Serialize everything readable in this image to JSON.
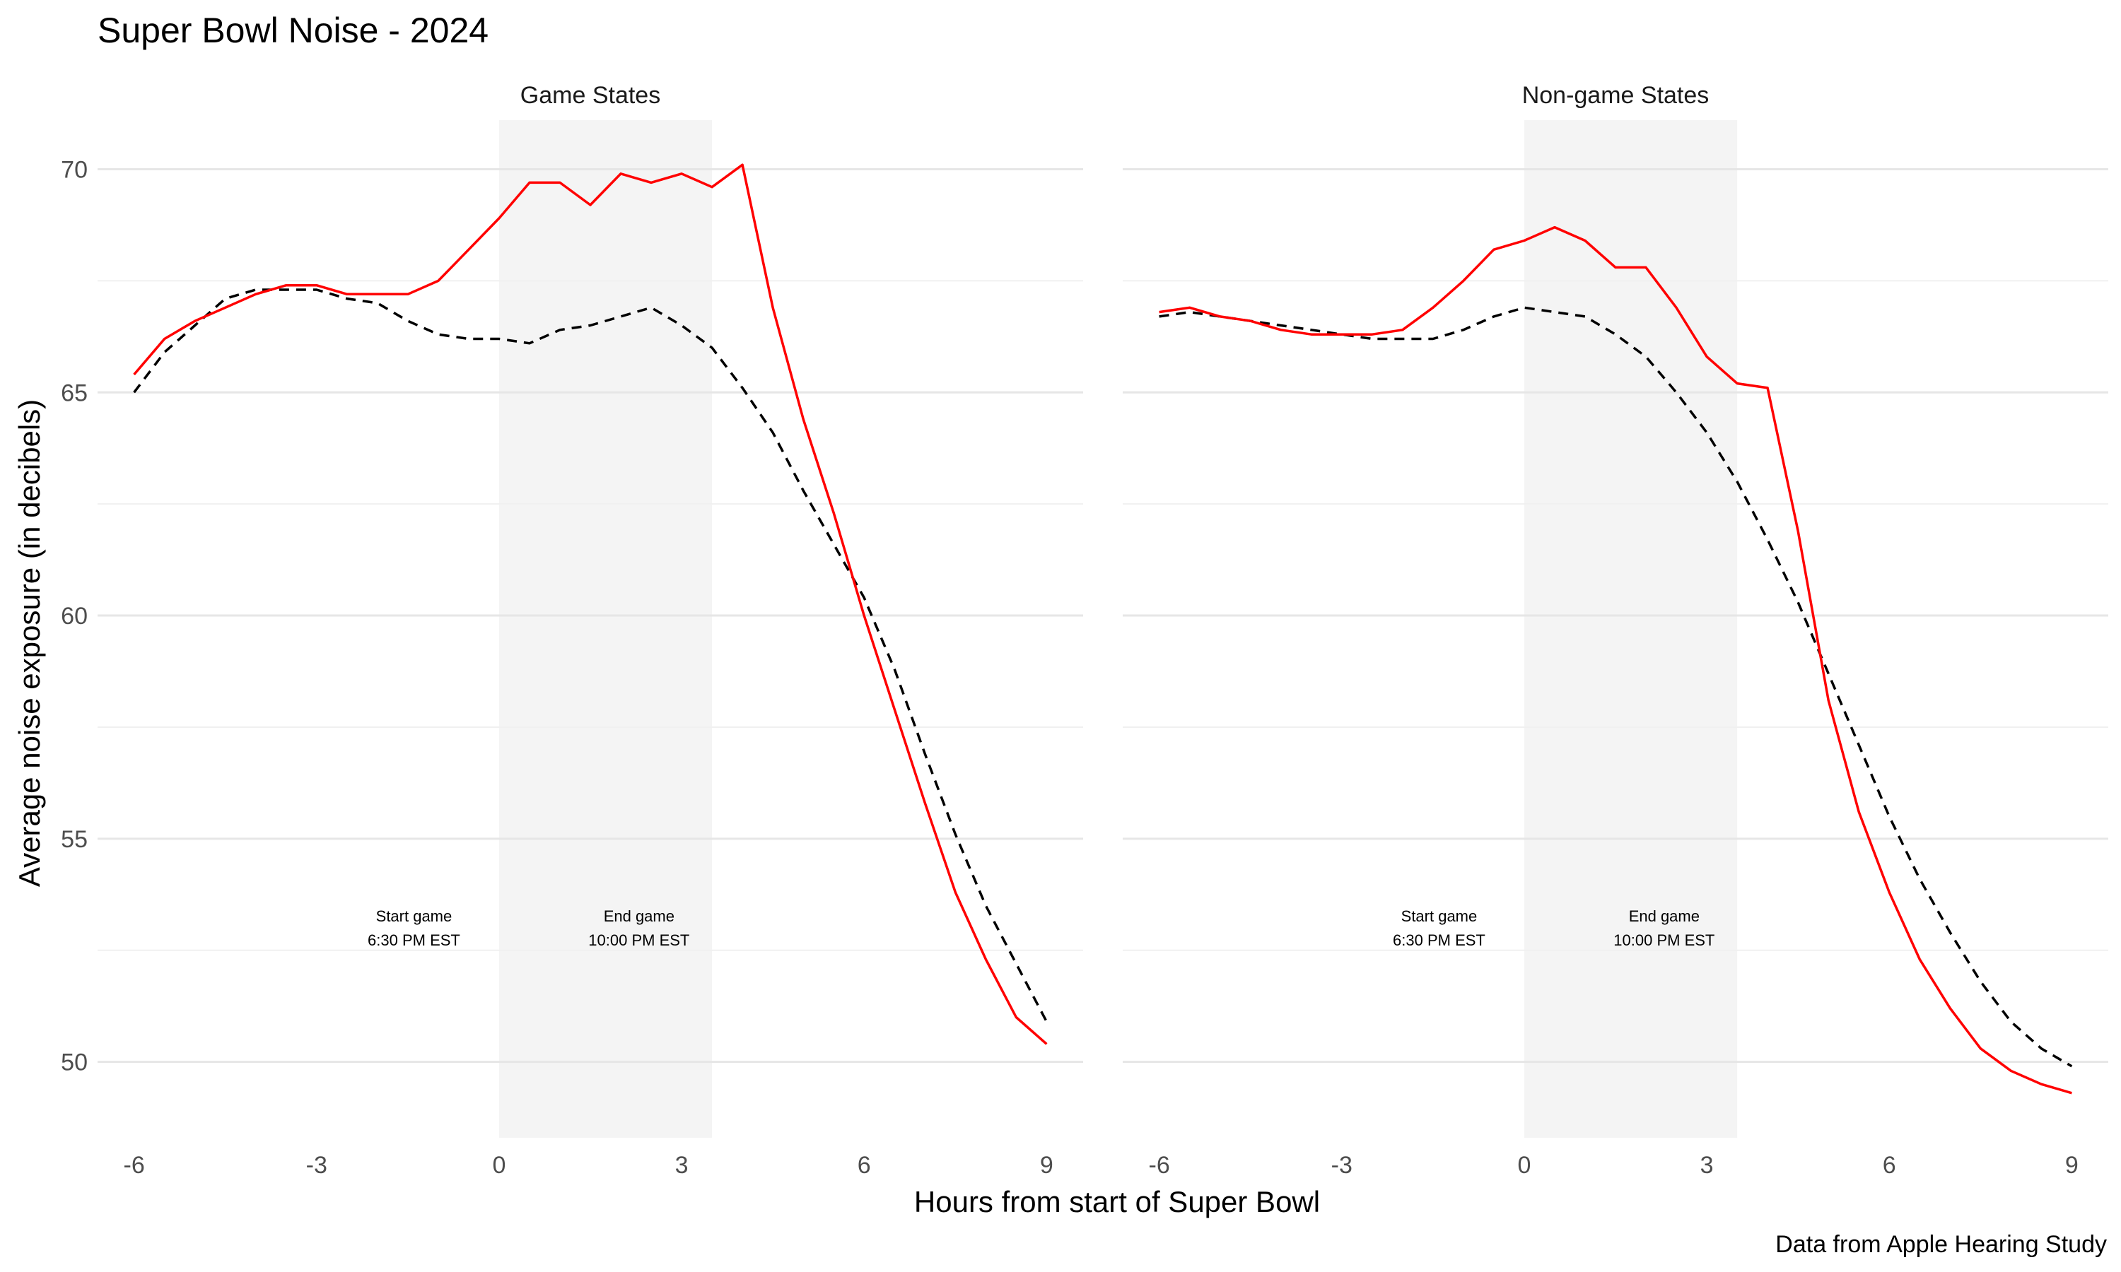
{
  "chart_data": {
    "type": "line",
    "title": "Super Bowl Noise - 2024",
    "xlabel": "Hours from start of Super Bowl",
    "ylabel": "Average noise exposure (in decibels)",
    "caption": "Data from Apple Hearing Study",
    "xlim": [
      -6.6,
      9.6
    ],
    "ylim": [
      48.3,
      71.1
    ],
    "x_ticks": [
      -6,
      -3,
      0,
      3,
      6,
      9
    ],
    "x_tick_labels": [
      "-6",
      "-3",
      "0",
      "3",
      "6",
      "9"
    ],
    "y_ticks": [
      50,
      55,
      60,
      65,
      70
    ],
    "y_tick_labels": [
      "50",
      "55",
      "60",
      "65",
      "70"
    ],
    "grid": true,
    "game_window": [
      0,
      3.5
    ],
    "annotations": [
      {
        "x": -1.4,
        "line1": "Start game",
        "line2": "6:30 PM EST"
      },
      {
        "x": 2.3,
        "line1": "End game",
        "line2": "10:00 PM EST"
      }
    ],
    "colors": {
      "solid": "#ff0000",
      "dashed": "#000000",
      "band": "#f4f4f4"
    },
    "panels": [
      {
        "name": "Game States",
        "series": [
          {
            "style": "solid",
            "x": [
              -6,
              -5.5,
              -5,
              -4.5,
              -4,
              -3.5,
              -3,
              -2.5,
              -2,
              -1.5,
              -1,
              -0.5,
              0,
              0.5,
              1,
              1.5,
              2,
              2.5,
              3,
              3.5,
              4,
              4.5,
              5,
              5.5,
              6,
              6.5,
              7,
              7.5,
              8,
              8.5,
              9
            ],
            "y": [
              65.4,
              66.2,
              66.6,
              66.9,
              67.2,
              67.4,
              67.4,
              67.2,
              67.2,
              67.2,
              67.5,
              68.2,
              68.9,
              69.7,
              69.7,
              69.2,
              69.9,
              69.7,
              69.9,
              69.6,
              70.1,
              66.9,
              64.4,
              62.3,
              60.0,
              57.9,
              55.8,
              53.8,
              52.3,
              51.0,
              50.4
            ]
          },
          {
            "style": "dashed",
            "x": [
              -6,
              -5.5,
              -5,
              -4.5,
              -4,
              -3.5,
              -3,
              -2.5,
              -2,
              -1.5,
              -1,
              -0.5,
              0,
              0.5,
              1,
              1.5,
              2,
              2.5,
              3,
              3.5,
              4,
              4.5,
              5,
              5.5,
              6,
              6.5,
              7,
              7.5,
              8,
              8.5,
              9
            ],
            "y": [
              65.0,
              65.9,
              66.5,
              67.1,
              67.3,
              67.3,
              67.3,
              67.1,
              67.0,
              66.6,
              66.3,
              66.2,
              66.2,
              66.1,
              66.4,
              66.5,
              66.7,
              66.9,
              66.5,
              66.0,
              65.1,
              64.1,
              62.8,
              61.6,
              60.4,
              58.8,
              56.9,
              55.1,
              53.5,
              52.2,
              50.9
            ]
          }
        ]
      },
      {
        "name": "Non-game States",
        "series": [
          {
            "style": "solid",
            "x": [
              -6,
              -5.5,
              -5,
              -4.5,
              -4,
              -3.5,
              -3,
              -2.5,
              -2,
              -1.5,
              -1,
              -0.5,
              0,
              0.5,
              1,
              1.5,
              2,
              2.5,
              3,
              3.5,
              4,
              4.5,
              5,
              5.5,
              6,
              6.5,
              7,
              7.5,
              8,
              8.5,
              9
            ],
            "y": [
              66.8,
              66.9,
              66.7,
              66.6,
              66.4,
              66.3,
              66.3,
              66.3,
              66.4,
              66.9,
              67.5,
              68.2,
              68.4,
              68.7,
              68.4,
              67.8,
              67.8,
              66.9,
              65.8,
              65.2,
              65.1,
              61.9,
              58.1,
              55.6,
              53.8,
              52.3,
              51.2,
              50.3,
              49.8,
              49.5,
              49.3
            ]
          },
          {
            "style": "dashed",
            "x": [
              -6,
              -5.5,
              -5,
              -4.5,
              -4,
              -3.5,
              -3,
              -2.5,
              -2,
              -1.5,
              -1,
              -0.5,
              0,
              0.5,
              1,
              1.5,
              2,
              2.5,
              3,
              3.5,
              4,
              4.5,
              5,
              5.5,
              6,
              6.5,
              7,
              7.5,
              8,
              8.5,
              9
            ],
            "y": [
              66.7,
              66.8,
              66.7,
              66.6,
              66.5,
              66.4,
              66.3,
              66.2,
              66.2,
              66.2,
              66.4,
              66.7,
              66.9,
              66.8,
              66.7,
              66.3,
              65.8,
              65.0,
              64.1,
              63.0,
              61.7,
              60.3,
              58.7,
              57.1,
              55.5,
              54.1,
              52.9,
              51.8,
              50.9,
              50.3,
              49.9
            ]
          }
        ]
      }
    ]
  }
}
